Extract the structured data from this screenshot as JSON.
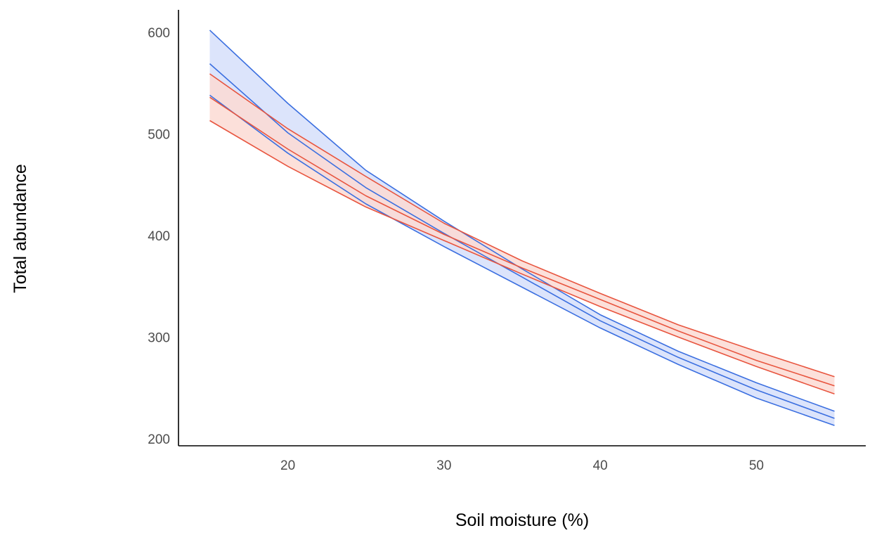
{
  "chart_data": {
    "type": "line",
    "title": "",
    "xlabel": "Soil moisture (%)",
    "ylabel": "Total abundance",
    "xlim": [
      13,
      57
    ],
    "ylim": [
      193,
      622
    ],
    "xticks": [
      20,
      30,
      40,
      50
    ],
    "yticks": [
      200,
      300,
      400,
      500,
      600
    ],
    "grid": false,
    "legend": "none",
    "x": [
      15,
      20,
      25,
      30,
      35,
      40,
      45,
      50,
      55
    ],
    "series": [
      {
        "color": "#3b6fe0",
        "fill": "#d6dffa",
        "fit": [
          569,
          501,
          447,
          402,
          359,
          316,
          280,
          248,
          220
        ],
        "lower": [
          538,
          481,
          431,
          389,
          349,
          309,
          273,
          240,
          213
        ],
        "upper": [
          602,
          530,
          464,
          414,
          367,
          322,
          286,
          255,
          227
        ]
      },
      {
        "color": "#e8553f",
        "fill": "#fcdad4",
        "fit": [
          536,
          485,
          439,
          401,
          368,
          337,
          306,
          277,
          252
        ],
        "lower": [
          513,
          468,
          428,
          395,
          362,
          330,
          300,
          271,
          244
        ],
        "upper": [
          559,
          505,
          458,
          412,
          375,
          343,
          312,
          286,
          261
        ]
      }
    ]
  }
}
